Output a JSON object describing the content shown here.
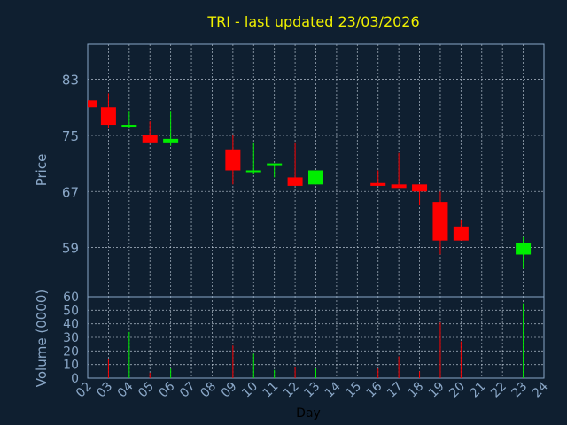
{
  "chart_data": {
    "type": "candlestick",
    "title": "TRI - last updated 23/03/2026",
    "price_panel": {
      "ylabel": "Price",
      "ylim": [
        52,
        88
      ],
      "yticks": [
        59,
        67,
        75,
        83
      ],
      "grid": true
    },
    "volume_panel": {
      "ylabel": "Volume (0000)",
      "ylim": [
        0,
        60
      ],
      "yticks": [
        0,
        10,
        20,
        30,
        40,
        50,
        60
      ],
      "grid": true
    },
    "xlabel": "Day",
    "x_ticks": [
      "02",
      "03",
      "04",
      "05",
      "06",
      "07",
      "08",
      "09",
      "10",
      "11",
      "12",
      "13",
      "14",
      "15",
      "16",
      "17",
      "18",
      "19",
      "20",
      "21",
      "22",
      "23",
      "24"
    ],
    "candles": [
      {
        "day": 2.1,
        "open": 80.0,
        "close": 79.0,
        "high": 80.0,
        "low": 79.0,
        "volume": 0,
        "dir": "down"
      },
      {
        "day": 3.0,
        "open": 79.0,
        "close": 76.5,
        "high": 81.0,
        "low": 76.0,
        "volume": 14,
        "dir": "down"
      },
      {
        "day": 4.0,
        "open": 76.3,
        "close": 76.5,
        "high": 78.5,
        "low": 76.0,
        "volume": 34,
        "dir": "up"
      },
      {
        "day": 5.0,
        "open": 75.0,
        "close": 74.0,
        "high": 77.0,
        "low": 74.0,
        "volume": 4,
        "dir": "down"
      },
      {
        "day": 6.0,
        "open": 74.0,
        "close": 74.5,
        "high": 78.5,
        "low": 73.5,
        "volume": 7,
        "dir": "up"
      },
      {
        "day": 9.0,
        "open": 73.0,
        "close": 70.0,
        "high": 75.0,
        "low": 68.0,
        "volume": 24,
        "dir": "down"
      },
      {
        "day": 10.0,
        "open": 69.8,
        "close": 70.0,
        "high": 74.0,
        "low": 69.5,
        "volume": 18,
        "dir": "up"
      },
      {
        "day": 11.0,
        "open": 70.8,
        "close": 71.0,
        "high": 71.0,
        "low": 69.0,
        "volume": 6,
        "dir": "up"
      },
      {
        "day": 12.0,
        "open": 69.0,
        "close": 67.8,
        "high": 74.0,
        "low": 67.8,
        "volume": 8,
        "dir": "down"
      },
      {
        "day": 13.0,
        "open": 68.0,
        "close": 70.0,
        "high": 70.0,
        "low": 68.0,
        "volume": 7,
        "dir": "up"
      },
      {
        "day": 16.0,
        "open": 68.2,
        "close": 67.8,
        "high": 70.0,
        "low": 67.8,
        "volume": 7,
        "dir": "down"
      },
      {
        "day": 17.0,
        "open": 68.0,
        "close": 67.5,
        "high": 72.5,
        "low": 67.5,
        "volume": 16,
        "dir": "down"
      },
      {
        "day": 18.0,
        "open": 68.0,
        "close": 67.0,
        "high": 68.0,
        "low": 65.0,
        "volume": 5,
        "dir": "down"
      },
      {
        "day": 19.0,
        "open": 65.5,
        "close": 60.0,
        "high": 67.0,
        "low": 58.0,
        "volume": 41,
        "dir": "down"
      },
      {
        "day": 20.0,
        "open": 62.0,
        "close": 60.0,
        "high": 63.0,
        "low": 60.0,
        "volume": 27,
        "dir": "down"
      },
      {
        "day": 23.0,
        "open": 58.0,
        "close": 59.7,
        "high": 60.5,
        "low": 56.0,
        "volume": 55,
        "dir": "up"
      }
    ],
    "colors": {
      "up": "#00ee00",
      "down": "#ff0000",
      "background": "#0f1f30",
      "axis_text": "#8aa7c7",
      "title": "#f0f000"
    }
  }
}
